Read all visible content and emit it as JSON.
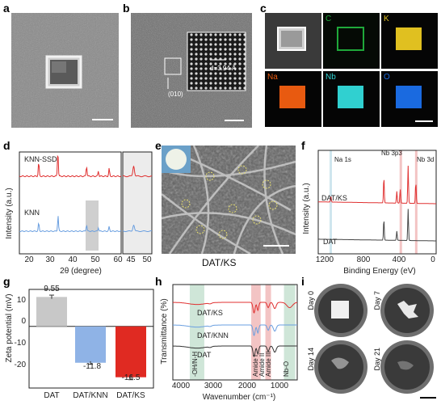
{
  "panels": {
    "a": {
      "label": "a"
    },
    "b": {
      "label": "b",
      "annotation_d": "d=3.94 Å",
      "annotation_plane": "(010)"
    },
    "c": {
      "label": "c",
      "elements": [
        "C",
        "K",
        "Na",
        "Nb",
        "O"
      ],
      "element_colors": {
        "C": "#1fa83a",
        "K": "#e0c020",
        "Na": "#e85a10",
        "Nb": "#30d0d0",
        "O": "#1a6ae0"
      }
    },
    "d": {
      "label": "d"
    },
    "e": {
      "label": "e",
      "caption": "DAT/KS"
    },
    "f": {
      "label": "f"
    },
    "g": {
      "label": "g"
    },
    "h": {
      "label": "h"
    },
    "i": {
      "label": "i",
      "days": [
        "Day 0",
        "Day 7",
        "Day 14",
        "Day 21"
      ]
    }
  },
  "chart_data": [
    {
      "panel": "d",
      "type": "line",
      "xlabel": "2θ (degree)",
      "ylabel": "Intensity (a.u.)",
      "xticks_left": [
        "20",
        "30",
        "40",
        "50",
        "60"
      ],
      "xticks_right": [
        "45",
        "50"
      ],
      "series": [
        {
          "name": "KNN-SSD",
          "color": "#e03030",
          "peaks": [
            [
              22.5,
              0.55
            ],
            [
              31.9,
              1.0
            ],
            [
              46.0,
              0.4
            ],
            [
              51.8,
              0.2
            ],
            [
              57.1,
              0.3
            ]
          ]
        },
        {
          "name": "KNN",
          "color": "#6a9fe0",
          "peaks": [
            [
              22.5,
              0.4
            ],
            [
              32.0,
              0.75
            ],
            [
              46.0,
              0.3
            ],
            [
              51.8,
              0.18
            ],
            [
              57.1,
              0.22
            ]
          ]
        }
      ]
    },
    {
      "panel": "f",
      "type": "line",
      "xlabel": "Binding Energy (eV)",
      "ylabel": "Intensity (a.u.)",
      "xticks": [
        "1200",
        "800",
        "400",
        "0"
      ],
      "xlim": [
        1200,
        0
      ],
      "annotations": [
        "Na 1s",
        "Nb 3p3",
        "Nb 3d"
      ],
      "series": [
        {
          "name": "DAT/KS",
          "color": "#e03030",
          "peaks": [
            [
              1071,
              0.12
            ],
            [
              532,
              0.55
            ],
            [
              400,
              0.25
            ],
            [
              366,
              0.3
            ],
            [
              285,
              0.8
            ],
            [
              207,
              0.45
            ]
          ]
        },
        {
          "name": "DAT",
          "color": "#444444",
          "peaks": [
            [
              532,
              0.5
            ],
            [
              400,
              0.22
            ],
            [
              285,
              0.75
            ]
          ]
        }
      ]
    },
    {
      "panel": "g",
      "type": "bar",
      "ylabel": "Zeta potential (mV)",
      "categories": [
        "DAT",
        "DAT/KNN",
        "DAT/KS"
      ],
      "values": [
        9.55,
        -11.8,
        -16.5
      ],
      "value_labels": [
        "9.55",
        "-11.8",
        "-16.5"
      ],
      "errors": [
        0.6,
        0.5,
        0.8
      ],
      "colors": [
        "#c8c8c8",
        "#8fb3e6",
        "#e02a22"
      ],
      "ylim": [
        -20,
        12
      ],
      "yticks": [
        "10",
        "0",
        "-10",
        "-20"
      ]
    },
    {
      "panel": "h",
      "type": "line",
      "xlabel": "Wavenumber (cm⁻¹)",
      "ylabel": "Transmittance (%)",
      "xticks": [
        "4000",
        "3000",
        "2000",
        "1000"
      ],
      "xlim": [
        4000,
        400
      ],
      "band_labels": [
        "-OH/N-H",
        "Amide I",
        "Amide II",
        "Amide III",
        "Nb-O"
      ],
      "series": [
        {
          "name": "DAT/KS",
          "color": "#e03030"
        },
        {
          "name": "DAT/KNN",
          "color": "#6a9fe0"
        },
        {
          "name": "DAT",
          "color": "#333333"
        }
      ]
    }
  ]
}
